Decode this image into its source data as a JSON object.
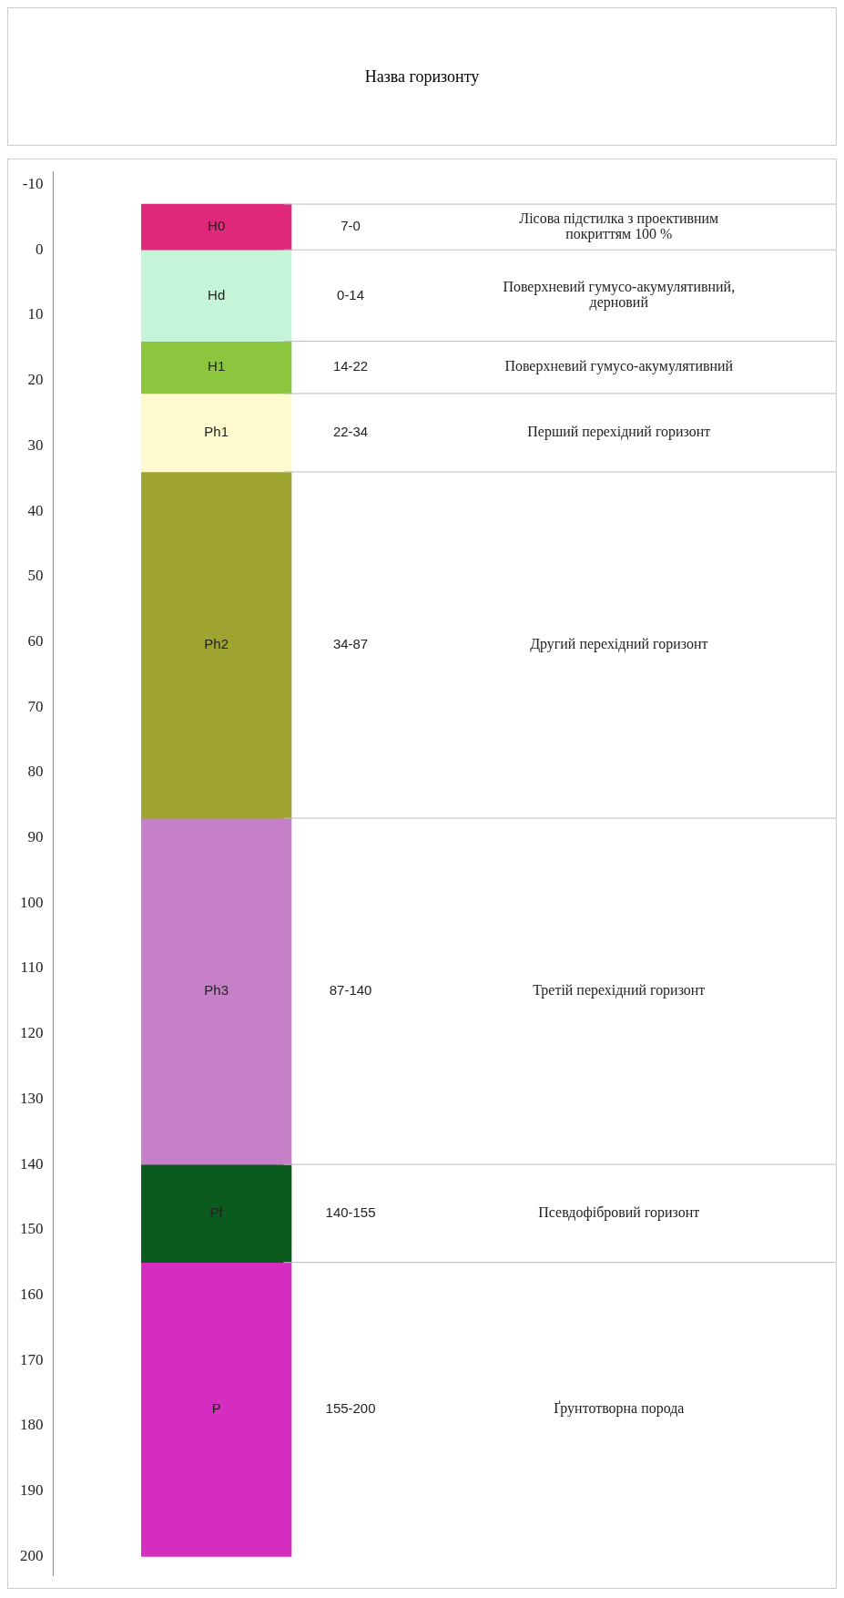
{
  "chart_data": {
    "type": "bar",
    "title": "Назва горизонту",
    "categories": [
      null
    ],
    "ylim": [
      203,
      -12
    ],
    "yticks": [
      -10,
      0,
      10,
      20,
      30,
      40,
      50,
      60,
      70,
      80,
      90,
      100,
      110,
      120,
      130,
      140,
      150,
      160,
      170,
      180,
      190,
      200
    ],
    "grid": false,
    "legend": false,
    "series": [
      {
        "name": "H0",
        "color": "#e0287a",
        "base": [
          -7
        ],
        "values": [
          7
        ]
      },
      {
        "name": "Hd",
        "color": "#c4f5d8",
        "base": [
          0
        ],
        "values": [
          14
        ]
      },
      {
        "name": "H1",
        "color": "#8cc63f",
        "base": [
          14
        ],
        "values": [
          8
        ]
      },
      {
        "name": "Ph1",
        "color": "#fffacd",
        "base": [
          22
        ],
        "values": [
          12
        ]
      },
      {
        "name": "Ph2",
        "color": "#9fa32f",
        "base": [
          34
        ],
        "values": [
          53
        ]
      },
      {
        "name": "Ph3",
        "color": "#c580c8",
        "base": [
          87
        ],
        "values": [
          53
        ]
      },
      {
        "name": "Pf",
        "color": "#0b5a1e",
        "base": [
          140
        ],
        "values": [
          15
        ]
      },
      {
        "name": "P",
        "color": "#d42dbf",
        "base": [
          155
        ],
        "values": [
          45
        ]
      }
    ],
    "ref_lines": [
      {
        "axis": "y",
        "value": -7,
        "color": "#bbbbbb"
      },
      {
        "axis": "y",
        "value": 0,
        "color": "#bbbbbb"
      },
      {
        "axis": "y",
        "value": 14,
        "color": "#bbbbbb"
      },
      {
        "axis": "y",
        "value": 22,
        "color": "#bbbbbb"
      },
      {
        "axis": "y",
        "value": 34,
        "color": "#bbbbbb"
      },
      {
        "axis": "y",
        "value": 87,
        "color": "#bbbbbb"
      },
      {
        "axis": "y",
        "value": 140,
        "color": "#bbbbbb"
      },
      {
        "axis": "y",
        "value": 155,
        "color": "#bbbbbb"
      }
    ],
    "annotations": [
      "7-0",
      "0-14",
      "14-22",
      "22-34",
      "34-87",
      "87-140",
      "140-155",
      "155-200",
      "Лісова підстилка з проективним покриттям 100 %",
      "Поверхневий гумусо-акумулятивний, дерновий",
      "Поверхневий гумусо-акумулятивний",
      "Перший перехідний горизонт",
      "Другий перехідний горизонт",
      "Третій перехідний горизонт",
      "Псевдофібровий горизонт",
      "Ґрунтотворна порода"
    ]
  }
}
